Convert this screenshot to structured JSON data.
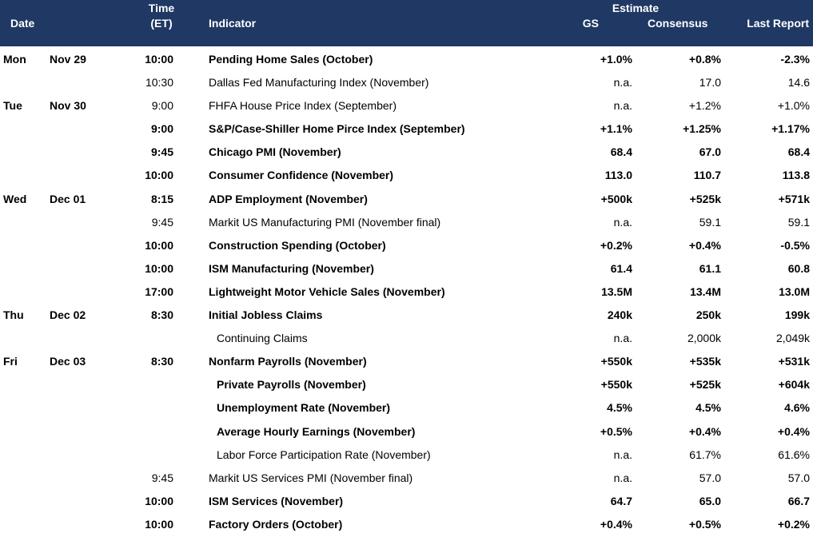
{
  "header": {
    "date": "Date",
    "time_line1": "Time",
    "time_line2": "(ET)",
    "indicator": "Indicator",
    "estimate": "Estimate",
    "gs": "GS",
    "consensus": "Consensus",
    "last_report": "Last Report",
    "background_color": "#1f3864"
  },
  "rows": [
    {
      "day": "Mon",
      "date": "Nov 29",
      "time": "10:00",
      "indicator": "Pending Home Sales (October)",
      "gs": "+1.0%",
      "consensus": "+0.8%",
      "last": "-2.3%",
      "bold": true,
      "sub": false
    },
    {
      "day": "",
      "date": "",
      "time": "10:30",
      "indicator": "Dallas Fed Manufacturing Index (November)",
      "gs": "n.a.",
      "consensus": "17.0",
      "last": "14.6",
      "bold": false,
      "sub": false
    },
    {
      "day": "Tue",
      "date": "Nov 30",
      "time": "9:00",
      "indicator": "FHFA House Price Index (September)",
      "gs": "n.a.",
      "consensus": "+1.2%",
      "last": "+1.0%",
      "bold": false,
      "sub": false
    },
    {
      "day": "",
      "date": "",
      "time": "9:00",
      "indicator": "S&P/Case-Shiller Home Pirce Index (September)",
      "gs": "+1.1%",
      "consensus": "+1.25%",
      "last": "+1.17%",
      "bold": true,
      "sub": false
    },
    {
      "day": "",
      "date": "",
      "time": "9:45",
      "indicator": "Chicago PMI (November)",
      "gs": "68.4",
      "consensus": "67.0",
      "last": "68.4",
      "bold": true,
      "sub": false
    },
    {
      "day": "",
      "date": "",
      "time": "10:00",
      "indicator": "Consumer Confidence (November)",
      "gs": "113.0",
      "consensus": "110.7",
      "last": "113.8",
      "bold": true,
      "sub": false
    },
    {
      "day": "Wed",
      "date": "Dec 01",
      "time": "8:15",
      "indicator": "ADP Employment (November)",
      "gs": "+500k",
      "consensus": "+525k",
      "last": "+571k",
      "bold": true,
      "sub": false
    },
    {
      "day": "",
      "date": "",
      "time": "9:45",
      "indicator": "Markit US Manufacturing PMI (November final)",
      "gs": "n.a.",
      "consensus": "59.1",
      "last": "59.1",
      "bold": false,
      "sub": false
    },
    {
      "day": "",
      "date": "",
      "time": "10:00",
      "indicator": "Construction Spending (October)",
      "gs": "+0.2%",
      "consensus": "+0.4%",
      "last": "-0.5%",
      "bold": true,
      "sub": false
    },
    {
      "day": "",
      "date": "",
      "time": "10:00",
      "indicator": "ISM Manufacturing (November)",
      "gs": "61.4",
      "consensus": "61.1",
      "last": "60.8",
      "bold": true,
      "sub": false
    },
    {
      "day": "",
      "date": "",
      "time": "17:00",
      "indicator": "Lightweight Motor Vehicle Sales (November)",
      "gs": "13.5M",
      "consensus": "13.4M",
      "last": "13.0M",
      "bold": true,
      "sub": false
    },
    {
      "day": "Thu",
      "date": "Dec 02",
      "time": "8:30",
      "indicator": "Initial Jobless Claims",
      "gs": "240k",
      "consensus": "250k",
      "last": "199k",
      "bold": true,
      "sub": false
    },
    {
      "day": "",
      "date": "",
      "time": "",
      "indicator": "Continuing Claims",
      "gs": "n.a.",
      "consensus": "2,000k",
      "last": "2,049k",
      "bold": false,
      "sub": true
    },
    {
      "day": "Fri",
      "date": "Dec 03",
      "time": "8:30",
      "indicator": "Nonfarm Payrolls (November)",
      "gs": "+550k",
      "consensus": "+535k",
      "last": "+531k",
      "bold": true,
      "sub": false
    },
    {
      "day": "",
      "date": "",
      "time": "",
      "indicator": "Private Payrolls (November)",
      "gs": "+550k",
      "consensus": "+525k",
      "last": "+604k",
      "bold": true,
      "sub": true
    },
    {
      "day": "",
      "date": "",
      "time": "",
      "indicator": "Unemployment Rate (November)",
      "gs": "4.5%",
      "consensus": "4.5%",
      "last": "4.6%",
      "bold": true,
      "sub": true
    },
    {
      "day": "",
      "date": "",
      "time": "",
      "indicator": "Average Hourly Earnings (November)",
      "gs": "+0.5%",
      "consensus": "+0.4%",
      "last": "+0.4%",
      "bold": true,
      "sub": true
    },
    {
      "day": "",
      "date": "",
      "time": "",
      "indicator": "Labor Force Participation Rate (November)",
      "gs": "n.a.",
      "consensus": "61.7%",
      "last": "61.6%",
      "bold": false,
      "sub": true
    },
    {
      "day": "",
      "date": "",
      "time": "9:45",
      "indicator": "Markit US Services PMI (November final)",
      "gs": "n.a.",
      "consensus": "57.0",
      "last": "57.0",
      "bold": false,
      "sub": false
    },
    {
      "day": "",
      "date": "",
      "time": "10:00",
      "indicator": "ISM Services (November)",
      "gs": "64.7",
      "consensus": "65.0",
      "last": "66.7",
      "bold": true,
      "sub": false
    },
    {
      "day": "",
      "date": "",
      "time": "10:00",
      "indicator": "Factory Orders (October)",
      "gs": "+0.4%",
      "consensus": "+0.5%",
      "last": "+0.2%",
      "bold": true,
      "sub": false
    }
  ]
}
